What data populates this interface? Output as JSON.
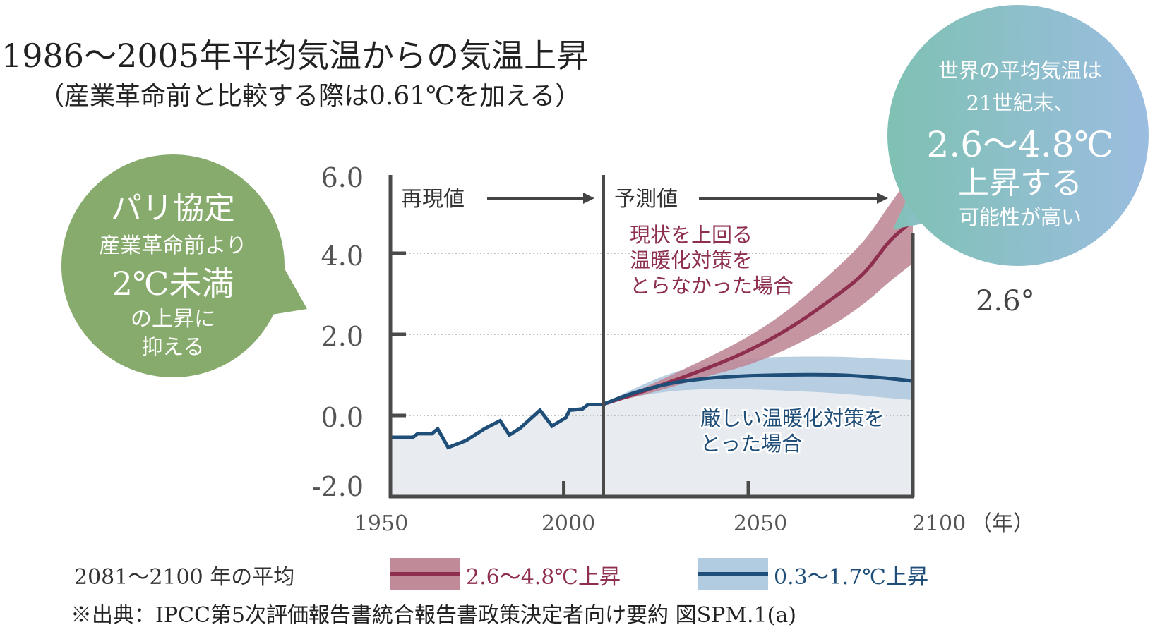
{
  "title": "1986～2005年平均気温からの気温上昇",
  "subtitle": "（産業革命前と比較する際は0.61℃を加える）",
  "green_bubble": {
    "line1": "パリ協定",
    "line2": "産業革命前より",
    "line3": "2℃未満",
    "line4": "の上昇に",
    "line5": "抑える",
    "color": "#87ab6c"
  },
  "teal_bubble": {
    "line1": "世界の平均気温は",
    "line2": "21世紀末、",
    "line3": "2.6～4.8℃",
    "line4": "上昇する",
    "line5": "可能性が高い",
    "color_start": "#7fc1b3",
    "color_end": "#9bbde0"
  },
  "side_label": "2.6°",
  "chart_data": {
    "type": "line",
    "xlabel": "（年）",
    "ylabel": "",
    "xlim": [
      1950,
      2100
    ],
    "ylim": [
      -2.0,
      6.0
    ],
    "x_ticks": [
      "1950",
      "2000",
      "2050",
      "2100"
    ],
    "y_ticks": [
      "6.0",
      "4.0",
      "2.0",
      "0.0",
      "-2.0"
    ],
    "grid": "dotted horizontal at 0, 2, 4",
    "divider_year": 2006,
    "section_labels": {
      "historical": "再現値",
      "projection": "予測値"
    },
    "annotations": {
      "high": "現状を上回る\n温暖化対策を\nとらなかった場合",
      "low": "厳しい温暖化対策を\nとった場合"
    },
    "historical": {
      "color": "#1f4e79",
      "points": [
        [
          1950,
          -0.54
        ],
        [
          1955.8,
          -0.54
        ],
        [
          1957,
          -0.45
        ],
        [
          1960.7,
          -0.45
        ],
        [
          1962.2,
          -0.33
        ],
        [
          1964.9,
          -0.79
        ],
        [
          1969.5,
          -0.62
        ],
        [
          1974.4,
          -0.32
        ],
        [
          1978.3,
          -0.13
        ],
        [
          1980.7,
          -0.48
        ],
        [
          1983.5,
          -0.31
        ],
        [
          1988.6,
          0.13
        ],
        [
          1991.7,
          -0.26
        ],
        [
          1995.3,
          -0.05
        ],
        [
          1996.2,
          0.13
        ],
        [
          1999.5,
          0.16
        ],
        [
          2001,
          0.27
        ],
        [
          2006,
          0.27
        ]
      ]
    },
    "series": [
      {
        "name": "2.6～4.8℃上昇",
        "color": "#8e2f4f",
        "band_color": "#c08a98",
        "x": [
          2006,
          2020,
          2037,
          2050,
          2062,
          2075,
          2085,
          2093,
          2100
        ],
        "mean": [
          0.28,
          0.65,
          1.15,
          1.6,
          2.13,
          2.85,
          3.5,
          4.3,
          4.8
        ],
        "lower": [
          0.28,
          0.55,
          0.95,
          1.25,
          1.65,
          2.2,
          2.75,
          3.3,
          3.75
        ],
        "upper": [
          0.28,
          0.75,
          1.4,
          1.95,
          2.6,
          3.5,
          4.3,
          5.2,
          6.0
        ]
      },
      {
        "name": "0.3～1.7℃上昇",
        "color": "#1f4e79",
        "band_color": "#b1cbe0",
        "x": [
          2006,
          2015,
          2027,
          2040,
          2055,
          2076,
          2090,
          2100
        ],
        "mean": [
          0.28,
          0.55,
          0.8,
          0.93,
          0.99,
          1.0,
          0.93,
          0.85
        ],
        "lower": [
          0.28,
          0.45,
          0.6,
          0.65,
          0.63,
          0.55,
          0.45,
          0.38
        ],
        "upper": [
          0.28,
          0.65,
          1.05,
          1.3,
          1.43,
          1.45,
          1.4,
          1.37
        ]
      }
    ],
    "legend": {
      "title": "2081～2100 年の平均",
      "placement": "bottom"
    }
  },
  "source": "※出典：IPCC第5次評価報告書統合報告書政策決定者向け要約 図SPM.1(a)",
  "colors": {
    "axis": "#4a4a4a",
    "fill": "#e8ecf0",
    "grid": "#b0b0b0"
  }
}
